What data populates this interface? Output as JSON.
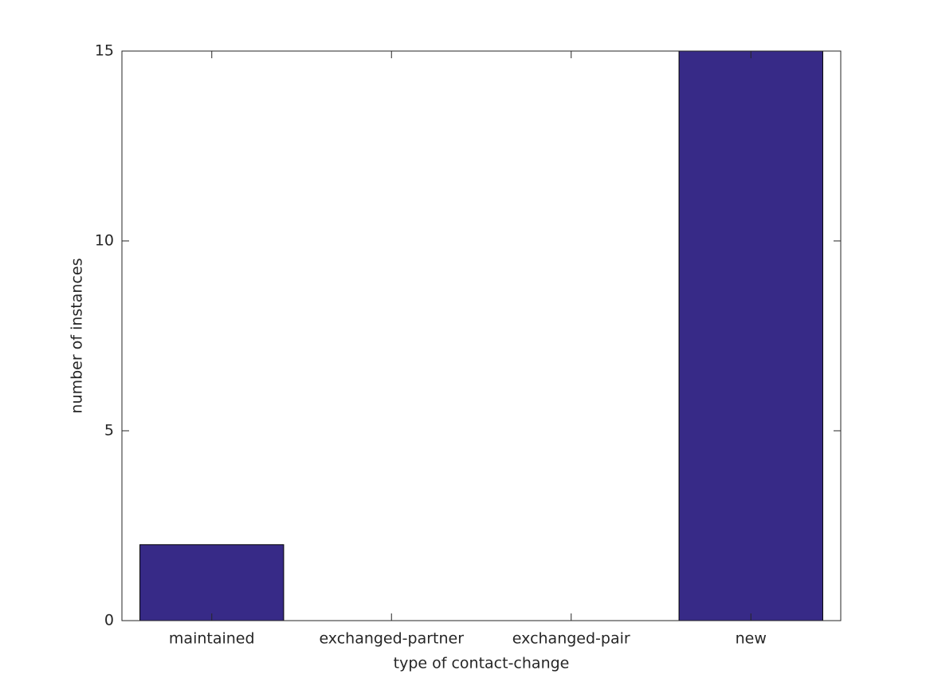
{
  "chart_data": {
    "type": "bar",
    "xlabel": "type of contact-change",
    "ylabel": "number of instances",
    "categories": [
      "maintained",
      "exchanged-partner",
      "exchanged-pair",
      "new"
    ],
    "values": [
      2,
      0,
      0,
      15
    ],
    "color": "#372a87",
    "ylim": [
      0,
      15
    ],
    "yticks": [
      0,
      5,
      10,
      15
    ],
    "grid": false
  }
}
